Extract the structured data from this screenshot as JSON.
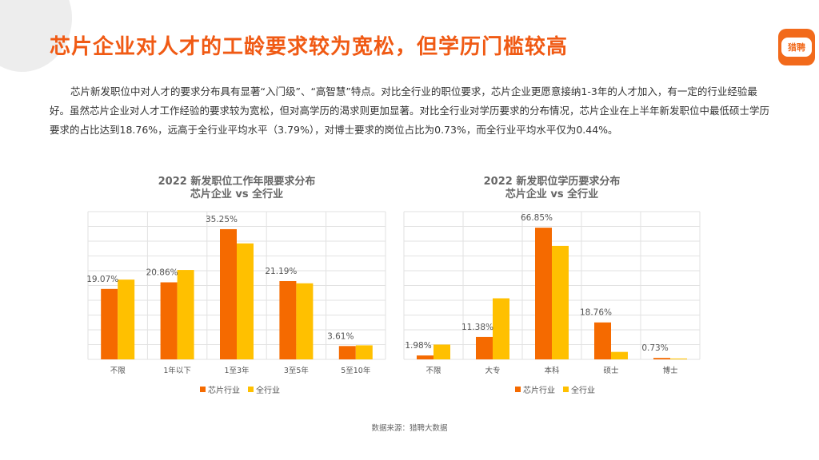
{
  "header": {
    "title": "芯片企业对人才的工龄要求较为宽松，但学历门槛较高",
    "logo_text": "猎聘",
    "logo_icon": "liepin-logo-icon"
  },
  "intro": "芯片新发职位中对人才的要求分布具有显著“入门级”、“高智慧”特点。对比全行业的职位要求，芯片企业更愿意接纳1-3年的人才加入，有一定的行业经验最好。虽然芯片企业对人才工作经验的要求较为宽松，但对高学历的渴求则更加显著。对比全行业对学历要求的分布情况，芯片企业在上半年新发职位中最低硕士学历要求的占比达到18.76%，远高于全行业平均水平（3.79%），对博士要求的岗位占比为0.73%，而全行业平均水平仅为0.44%。",
  "colors": {
    "chip": "#f56a00",
    "all": "#ffc000",
    "grid": "#e2e2e2"
  },
  "chart_data": [
    {
      "type": "bar",
      "title_line1": "2022 新发职位工作年限要求分布",
      "title_line2": "芯片企业 vs 全行业",
      "categories": [
        "不限",
        "1年以下",
        "1至3年",
        "3至5年",
        "5至10年"
      ],
      "series": [
        {
          "name": "芯片行业",
          "values": [
            19.07,
            20.86,
            35.25,
            21.19,
            3.61
          ]
        },
        {
          "name": "全行业",
          "values": [
            21.6,
            24.2,
            31.4,
            20.6,
            3.8
          ]
        }
      ],
      "data_labels": [
        "19.07%",
        "20.86%",
        "35.25%",
        "21.19%",
        "3.61%"
      ],
      "ylim": [
        0,
        40
      ],
      "legend": [
        "芯片行业",
        "全行业"
      ]
    },
    {
      "type": "bar",
      "title_line1": "2022 新发职位学历要求分布",
      "title_line2": "芯片企业 vs 全行业",
      "categories": [
        "不限",
        "大专",
        "本科",
        "硕士",
        "博士"
      ],
      "series": [
        {
          "name": "芯片行业",
          "values": [
            1.98,
            11.38,
            66.85,
            18.76,
            0.73
          ]
        },
        {
          "name": "全行业",
          "values": [
            7.5,
            31.0,
            57.6,
            3.79,
            0.44
          ]
        }
      ],
      "data_labels": [
        "1.98%",
        "11.38%",
        "66.85%",
        "18.76%",
        "0.73%"
      ],
      "ylim": [
        0,
        75
      ],
      "legend": [
        "芯片行业",
        "全行业"
      ]
    }
  ],
  "source": "数据来源：猎聘大数据"
}
